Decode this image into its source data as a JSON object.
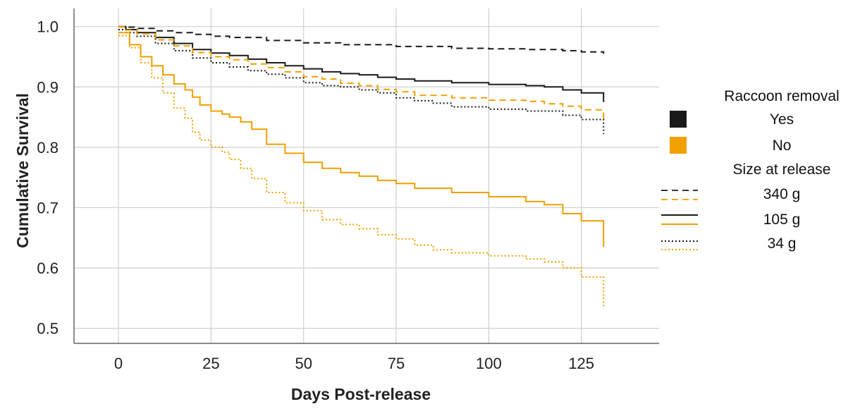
{
  "chart_data": {
    "type": "line",
    "title": "",
    "xlabel": "Days Post-release",
    "ylabel": "Cumulative Survival",
    "xlim": [
      -12,
      146
    ],
    "ylim": [
      0.475,
      1.03
    ],
    "xticks": [
      0,
      25,
      50,
      75,
      100,
      125
    ],
    "yticks": [
      0.5,
      0.6,
      0.7,
      0.8,
      0.9,
      1.0
    ],
    "xtick_labels": [
      "0",
      "25",
      "50",
      "75",
      "100",
      "125"
    ],
    "ytick_labels": [
      "0.5",
      "0.6",
      "0.7",
      "0.8",
      "0.9",
      "1.0"
    ],
    "grid": true,
    "legend_placement": "right",
    "legend": {
      "group1_title": "Raccoon removal",
      "group1_items": [
        {
          "label": "Yes",
          "color": "#1a1a1a"
        },
        {
          "label": "No",
          "color": "#f0a000"
        }
      ],
      "group2_title": "Size at release",
      "group2_items": [
        {
          "label": "340 g",
          "dash": "dashed"
        },
        {
          "label": "105 g",
          "dash": "solid"
        },
        {
          "label": "34 g",
          "dash": "dotted"
        }
      ]
    },
    "series": [
      {
        "removal": "Yes",
        "size": "340 g",
        "color": "#1a1a1a",
        "dash": "dashed",
        "x": [
          0,
          2,
          5,
          10,
          15,
          20,
          25,
          30,
          40,
          50,
          60,
          75,
          90,
          100,
          110,
          120,
          125,
          131,
          131
        ],
        "y": [
          1.0,
          0.999,
          0.997,
          0.993,
          0.99,
          0.987,
          0.984,
          0.982,
          0.977,
          0.973,
          0.97,
          0.967,
          0.964,
          0.963,
          0.962,
          0.96,
          0.958,
          0.957,
          0.955
        ]
      },
      {
        "removal": "Yes",
        "size": "105 g",
        "color": "#1a1a1a",
        "dash": "solid",
        "x": [
          0,
          2,
          5,
          10,
          15,
          20,
          25,
          30,
          35,
          40,
          45,
          50,
          55,
          60,
          65,
          70,
          75,
          80,
          90,
          100,
          110,
          115,
          120,
          125,
          131,
          131
        ],
        "y": [
          1.0,
          0.995,
          0.99,
          0.982,
          0.972,
          0.962,
          0.956,
          0.952,
          0.946,
          0.94,
          0.935,
          0.93,
          0.925,
          0.922,
          0.92,
          0.916,
          0.913,
          0.91,
          0.907,
          0.904,
          0.902,
          0.9,
          0.895,
          0.89,
          0.89,
          0.875
        ]
      },
      {
        "removal": "Yes",
        "size": "34 g",
        "color": "#1a1a1a",
        "dash": "dotted",
        "x": [
          0,
          2,
          5,
          10,
          15,
          20,
          25,
          30,
          35,
          40,
          45,
          50,
          55,
          60,
          65,
          70,
          75,
          80,
          85,
          90,
          100,
          110,
          120,
          125,
          131,
          131
        ],
        "y": [
          0.995,
          0.99,
          0.984,
          0.972,
          0.96,
          0.948,
          0.94,
          0.933,
          0.927,
          0.921,
          0.915,
          0.907,
          0.902,
          0.9,
          0.895,
          0.89,
          0.882,
          0.877,
          0.873,
          0.867,
          0.863,
          0.86,
          0.853,
          0.846,
          0.843,
          0.822
        ]
      },
      {
        "removal": "No",
        "size": "340 g",
        "color": "#f0a000",
        "dash": "dashed",
        "x": [
          0,
          2,
          5,
          10,
          15,
          20,
          25,
          30,
          35,
          40,
          45,
          50,
          55,
          60,
          65,
          70,
          75,
          80,
          90,
          100,
          110,
          115,
          120,
          125,
          131,
          131
        ],
        "y": [
          1.0,
          0.994,
          0.988,
          0.978,
          0.968,
          0.957,
          0.95,
          0.945,
          0.938,
          0.932,
          0.925,
          0.917,
          0.913,
          0.906,
          0.902,
          0.896,
          0.892,
          0.886,
          0.882,
          0.878,
          0.876,
          0.872,
          0.868,
          0.862,
          0.86,
          0.845
        ]
      },
      {
        "removal": "No",
        "size": "105 g",
        "color": "#f0a000",
        "dash": "solid",
        "x": [
          0,
          3,
          6,
          9,
          12,
          15,
          18,
          20,
          22,
          25,
          28,
          30,
          33,
          36,
          40,
          45,
          50,
          55,
          60,
          65,
          70,
          75,
          80,
          90,
          100,
          110,
          115,
          120,
          125,
          131,
          131
        ],
        "y": [
          0.99,
          0.97,
          0.95,
          0.935,
          0.92,
          0.905,
          0.895,
          0.883,
          0.87,
          0.86,
          0.855,
          0.85,
          0.842,
          0.83,
          0.805,
          0.79,
          0.775,
          0.765,
          0.758,
          0.752,
          0.745,
          0.74,
          0.732,
          0.725,
          0.718,
          0.71,
          0.705,
          0.69,
          0.678,
          0.675,
          0.635
        ]
      },
      {
        "removal": "No",
        "size": "34 g",
        "color": "#f0a000",
        "dash": "dotted",
        "x": [
          0,
          3,
          6,
          9,
          12,
          15,
          18,
          20,
          22,
          25,
          28,
          30,
          33,
          36,
          40,
          45,
          50,
          55,
          60,
          65,
          70,
          75,
          80,
          85,
          90,
          100,
          110,
          115,
          120,
          125,
          131,
          131
        ],
        "y": [
          0.985,
          0.965,
          0.94,
          0.915,
          0.89,
          0.865,
          0.848,
          0.825,
          0.812,
          0.8,
          0.792,
          0.78,
          0.765,
          0.748,
          0.725,
          0.708,
          0.695,
          0.68,
          0.672,
          0.665,
          0.655,
          0.648,
          0.638,
          0.63,
          0.625,
          0.62,
          0.615,
          0.61,
          0.6,
          0.585,
          0.58,
          0.535
        ]
      }
    ]
  }
}
